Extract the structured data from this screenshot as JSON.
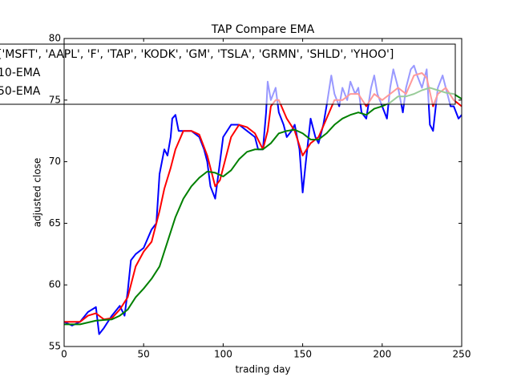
{
  "chart_data": {
    "type": "line",
    "title": "TAP Compare EMA",
    "x_label": "trading day",
    "y_label": "adjusted close",
    "xlim": [
      0,
      250
    ],
    "ylim": [
      55,
      80
    ],
    "xticks": [
      0,
      50,
      100,
      150,
      200,
      250
    ],
    "yticks": [
      55,
      60,
      65,
      70,
      75,
      80
    ],
    "legend": "upper left",
    "grid": false,
    "series": [
      {
        "name": "['MSFT', 'AAPL', 'F', 'TAP', 'KODK', 'GM', 'TSLA', 'GRMN', 'SHLD', 'YHOO']",
        "color": "#0000ff",
        "x": [
          0,
          5,
          10,
          15,
          20,
          22,
          25,
          30,
          35,
          38,
          40,
          42,
          45,
          50,
          55,
          58,
          60,
          63,
          65,
          67,
          68,
          70,
          72,
          75,
          80,
          85,
          88,
          90,
          92,
          95,
          98,
          100,
          105,
          110,
          115,
          120,
          122,
          125,
          127,
          128,
          130,
          133,
          135,
          138,
          140,
          143,
          145,
          148,
          150,
          152,
          155,
          158,
          160,
          163,
          165,
          168,
          170,
          173,
          175,
          178,
          180,
          183,
          185,
          187,
          190,
          193,
          195,
          197,
          200,
          203,
          205,
          207,
          210,
          213,
          215,
          218,
          220,
          222,
          225,
          228,
          230,
          232,
          235,
          238,
          240,
          243,
          245,
          248,
          250
        ],
        "values": [
          57,
          56.7,
          57.0,
          57.8,
          58.2,
          56,
          56.5,
          57.5,
          58.3,
          57.5,
          59.5,
          62,
          62.5,
          63,
          64.5,
          65,
          69,
          71,
          70.5,
          72,
          73.5,
          73.8,
          72.5,
          72.5,
          72.5,
          72,
          71,
          70,
          68,
          67,
          70,
          72,
          73,
          73,
          72.5,
          72,
          71,
          71,
          74,
          76.5,
          75,
          76,
          74,
          73,
          72,
          72.5,
          73,
          71,
          67.5,
          70,
          73.5,
          72,
          71.5,
          73,
          74.5,
          77,
          75.5,
          74.5,
          76,
          75,
          76.5,
          75.5,
          76,
          74,
          73.5,
          76,
          77,
          75.5,
          74.5,
          73.5,
          76,
          77.5,
          76,
          74,
          76,
          77.5,
          77.8,
          77,
          76,
          77.5,
          73,
          72.5,
          76,
          77,
          76,
          74.5,
          74.5,
          73.5,
          73.8
        ]
      },
      {
        "name": "10-EMA",
        "color": "#ff0000",
        "x": [
          0,
          10,
          15,
          20,
          25,
          30,
          35,
          40,
          45,
          50,
          55,
          60,
          63,
          67,
          70,
          75,
          80,
          85,
          90,
          95,
          98,
          100,
          105,
          110,
          115,
          120,
          125,
          128,
          130,
          133,
          135,
          140,
          145,
          150,
          155,
          160,
          165,
          170,
          175,
          180,
          185,
          190,
          195,
          200,
          205,
          210,
          215,
          220,
          225,
          228,
          232,
          235,
          240,
          245,
          250
        ],
        "values": [
          57,
          57,
          57.5,
          57.7,
          57.2,
          57.3,
          58,
          59,
          61.5,
          62.7,
          63.5,
          66,
          67.8,
          69.5,
          71,
          72.5,
          72.5,
          72.2,
          70.5,
          68,
          68.5,
          69.5,
          72,
          73,
          72.8,
          72.3,
          71,
          72.5,
          74.5,
          75,
          75,
          73.5,
          72.5,
          70.5,
          71.5,
          72,
          73.5,
          75,
          75,
          75.5,
          75.5,
          74.5,
          75.5,
          75,
          75.5,
          76,
          75.5,
          77,
          77.2,
          76.8,
          74.5,
          75.5,
          76,
          75,
          74.5
        ]
      },
      {
        "name": "50-EMA",
        "color": "#008000",
        "x": [
          0,
          10,
          20,
          30,
          35,
          40,
          45,
          50,
          55,
          60,
          65,
          70,
          75,
          80,
          85,
          90,
          95,
          100,
          105,
          110,
          115,
          120,
          125,
          130,
          135,
          140,
          145,
          150,
          155,
          160,
          165,
          170,
          175,
          180,
          185,
          190,
          195,
          200,
          205,
          210,
          215,
          220,
          225,
          230,
          235,
          240,
          245,
          250
        ],
        "values": [
          56.8,
          56.8,
          57.1,
          57.2,
          57.5,
          58,
          59,
          59.7,
          60.5,
          61.5,
          63.5,
          65.5,
          67,
          68,
          68.7,
          69.2,
          69.1,
          68.8,
          69.3,
          70.2,
          70.8,
          71,
          71,
          71.5,
          72.3,
          72.5,
          72.6,
          72.3,
          71.8,
          71.8,
          72.3,
          73,
          73.5,
          73.8,
          74,
          73.8,
          74.3,
          74.5,
          74.8,
          75.3,
          75.3,
          75.5,
          75.8,
          76,
          75.8,
          75.6,
          75.5,
          75.1
        ]
      }
    ]
  }
}
